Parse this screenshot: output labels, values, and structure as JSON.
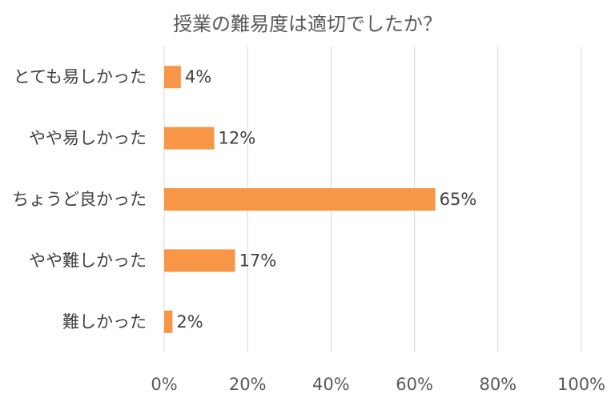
{
  "chart_data": {
    "type": "bar",
    "orientation": "horizontal",
    "title": "授業の難易度は適切でしたか？",
    "categories": [
      "とても易しかった",
      "やや易しかった",
      "ちょうど良かった",
      "やや難しかった",
      "難しかった"
    ],
    "values": [
      4,
      12,
      65,
      17,
      2
    ],
    "value_labels": [
      "4%",
      "12%",
      "65%",
      "17%",
      "2%"
    ],
    "xlim": [
      0,
      100
    ],
    "x_ticks": [
      0,
      20,
      40,
      60,
      80,
      100
    ],
    "x_tick_labels": [
      "0%",
      "20%",
      "40%",
      "60%",
      "80%",
      "100%"
    ],
    "xlabel": "",
    "ylabel": "",
    "grid": "vertical",
    "legend": "none",
    "bar_color": "#F79646"
  }
}
